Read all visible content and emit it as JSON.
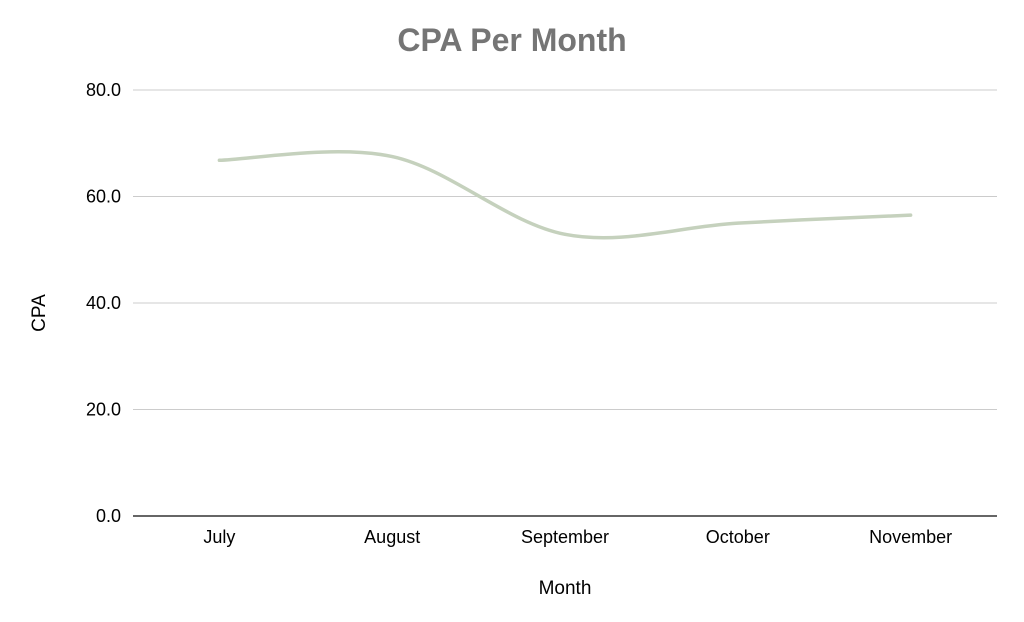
{
  "chart_data": {
    "type": "line",
    "title": "CPA Per Month",
    "xlabel": "Month",
    "ylabel": "CPA",
    "categories": [
      "July",
      "August",
      "September",
      "October",
      "November"
    ],
    "series": [
      {
        "values": [
          66.8,
          67.5,
          52.9,
          55.0,
          56.5
        ]
      }
    ],
    "ylim": [
      0,
      80
    ],
    "yticks": [
      "0.0",
      "20.0",
      "40.0",
      "60.0",
      "80.0"
    ],
    "grid": true,
    "legend": "none",
    "line_color": "#c5d1bd"
  }
}
